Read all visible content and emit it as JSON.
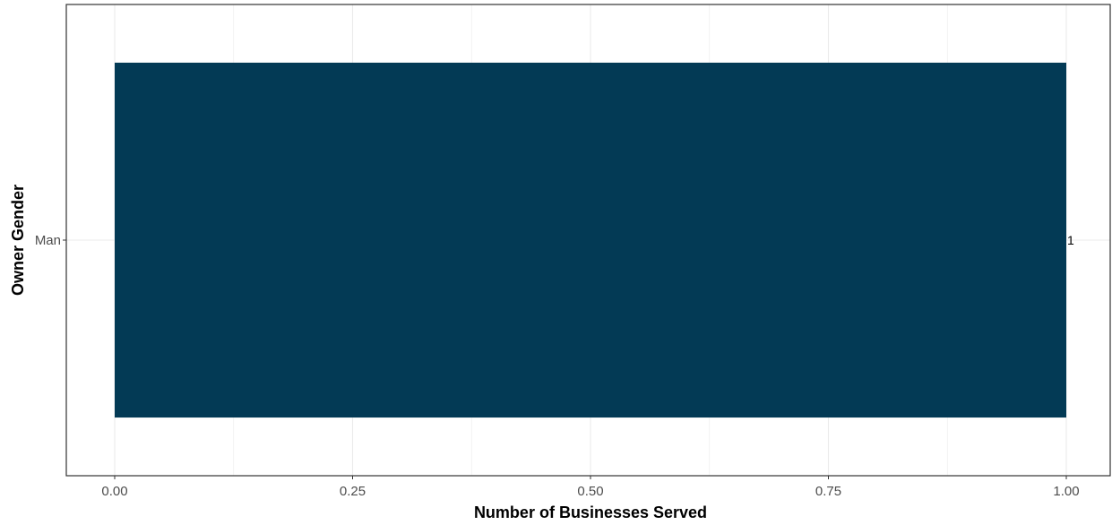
{
  "chart_data": {
    "type": "bar",
    "orientation": "horizontal",
    "categories": [
      "Man"
    ],
    "values": [
      1
    ],
    "data_labels": [
      "1"
    ],
    "title": "",
    "xlabel": "Number of Businesses Served",
    "ylabel": "Owner Gender",
    "xlim": [
      0,
      1
    ],
    "x_ticks": [
      0,
      0.25,
      0.5,
      0.75,
      1
    ],
    "x_tick_labels": [
      "0.00",
      "0.25",
      "0.50",
      "0.75",
      "1.00"
    ],
    "grid": true,
    "legend": "none",
    "colors": {
      "bar": "#033a55",
      "grid": "#ebebeb",
      "panel_border": "#333333"
    }
  }
}
